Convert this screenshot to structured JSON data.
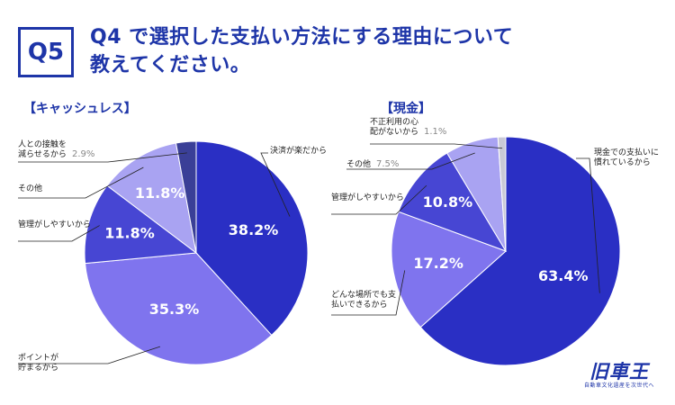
{
  "header": {
    "badge": "Q5",
    "title_line1": "Q4 で選択した支払い方法にする理由について",
    "title_line2": "教えてください。"
  },
  "brand": {
    "logo": "旧車王",
    "tagline": "自動車文化遺産を次世代へ"
  },
  "colors": {
    "accent": "#1e35a8",
    "slice_dark": "#2a2fc4",
    "slice_purple": "#7f74ee",
    "slice_medium": "#4746d3",
    "slice_lavender": "#a9a3f2",
    "slice_navy": "#3a3f97",
    "slice_gray": "#c9c9d6"
  },
  "chart_data": [
    {
      "type": "pie",
      "title": "【キャッシュレス】",
      "slices": [
        {
          "label": "決済が楽だから",
          "value": 38.2,
          "display": "38.2%",
          "color": "#2a2fc4"
        },
        {
          "label": "ポイントが貯まるから",
          "value": 35.3,
          "display": "35.3%",
          "color": "#7f74ee"
        },
        {
          "label": "管理がしやすいから",
          "value": 11.8,
          "display": "11.8%",
          "color": "#4746d3"
        },
        {
          "label": "その他",
          "value": 11.8,
          "display": "11.8%",
          "color": "#a9a3f2"
        },
        {
          "label": "人との接触を減らせるから",
          "value": 2.9,
          "display": "2.9%",
          "color": "#3a3f97"
        }
      ]
    },
    {
      "type": "pie",
      "title": "【現金】",
      "slices": [
        {
          "label": "現金での支払いに慣れているから",
          "value": 63.4,
          "display": "63.4%",
          "color": "#2a2fc4"
        },
        {
          "label": "どんな場所でも支払いできるから",
          "value": 17.2,
          "display": "17.2%",
          "color": "#7f74ee"
        },
        {
          "label": "管理がしやすいから",
          "value": 10.8,
          "display": "10.8%",
          "color": "#4746d3"
        },
        {
          "label": "その他",
          "value": 7.5,
          "display": "7.5%",
          "color": "#a9a3f2"
        },
        {
          "label": "不正利用の心配がないから",
          "value": 1.1,
          "display": "1.1%",
          "color": "#c9c9d6"
        }
      ]
    }
  ]
}
